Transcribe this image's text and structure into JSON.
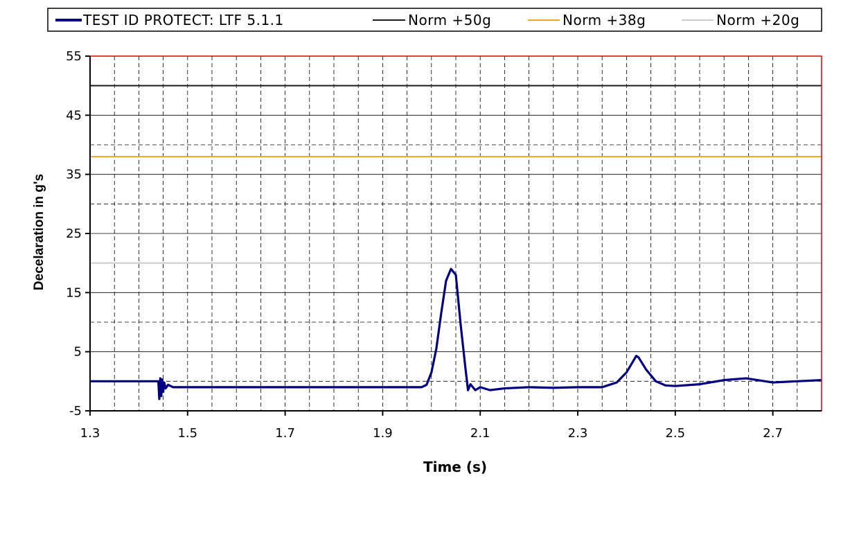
{
  "chart_data": {
    "type": "line",
    "title": "",
    "xlabel": "Time (s)",
    "ylabel": "Decelaration in g's",
    "xlim": [
      1.3,
      2.8
    ],
    "ylim": [
      -5,
      55
    ],
    "x_ticks": [
      1.3,
      1.5,
      1.7,
      1.9,
      2.1,
      2.3,
      2.5,
      2.7
    ],
    "y_ticks": [
      -5,
      5,
      15,
      25,
      35,
      45,
      55
    ],
    "grid": true,
    "legend_position": "top",
    "series": [
      {
        "name": "TEST ID PROTECT: LTF 5.1.1",
        "color": "#000080",
        "x": [
          1.3,
          1.44,
          1.442,
          1.444,
          1.446,
          1.448,
          1.45,
          1.452,
          1.455,
          1.46,
          1.47,
          1.5,
          1.6,
          1.7,
          1.8,
          1.9,
          1.98,
          1.99,
          2.0,
          2.01,
          2.02,
          2.03,
          2.04,
          2.05,
          2.06,
          2.07,
          2.075,
          2.08,
          2.09,
          2.1,
          2.12,
          2.15,
          2.2,
          2.25,
          2.3,
          2.35,
          2.38,
          2.4,
          2.42,
          2.425,
          2.44,
          2.46,
          2.48,
          2.5,
          2.55,
          2.6,
          2.645,
          2.7,
          2.75,
          2.8
        ],
        "y": [
          0,
          0,
          -3,
          0.5,
          -2.5,
          0.3,
          -1.8,
          -0.2,
          -1.2,
          -0.6,
          -1.0,
          -1.0,
          -1.0,
          -1.0,
          -1.0,
          -1.0,
          -1.0,
          -0.6,
          1.5,
          5.5,
          11.5,
          17.0,
          19.0,
          18.0,
          9.5,
          2.0,
          -1.5,
          -0.5,
          -1.5,
          -1.0,
          -1.5,
          -1.2,
          -1.0,
          -1.1,
          -1.0,
          -1.0,
          -0.2,
          1.5,
          4.3,
          4.0,
          2.0,
          0,
          -0.7,
          -0.8,
          -0.5,
          0.2,
          0.5,
          -0.2,
          0,
          0.2
        ]
      },
      {
        "name": "Norm +50g",
        "color": "#1a1a1a",
        "x": [
          1.3,
          2.8
        ],
        "y": [
          50,
          50
        ]
      },
      {
        "name": "Norm +38g",
        "color": "#f2a51c",
        "x": [
          1.3,
          2.8
        ],
        "y": [
          38,
          38
        ]
      },
      {
        "name": "Norm +20g",
        "color": "#cccccc",
        "x": [
          1.3,
          2.8
        ],
        "y": [
          20,
          20
        ]
      }
    ]
  }
}
